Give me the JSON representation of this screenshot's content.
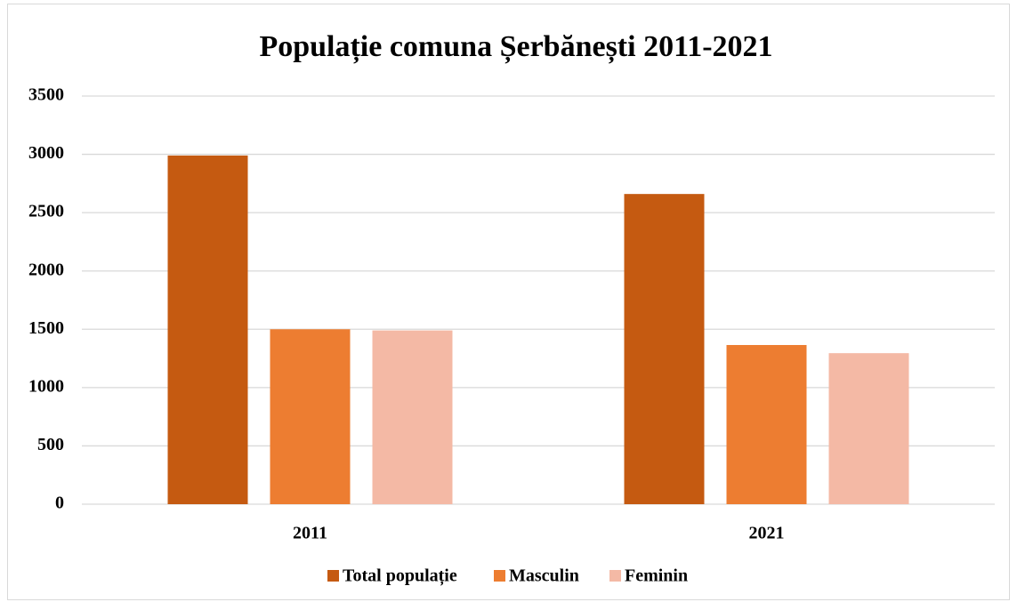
{
  "chart_data": {
    "type": "bar",
    "title": "Populație comuna Șerbănești 2011-2021",
    "categories": [
      "2011",
      "2021"
    ],
    "series": [
      {
        "name": "Total populație",
        "color": "#c55a11",
        "values": [
          2990,
          2660
        ]
      },
      {
        "name": "Masculin",
        "color": "#ed7d31",
        "values": [
          1500,
          1365
        ]
      },
      {
        "name": "Feminin",
        "color": "#f4b9a5",
        "values": [
          1490,
          1295
        ]
      }
    ],
    "ylim": [
      0,
      3500
    ],
    "yticks": [
      0,
      500,
      1000,
      1500,
      2000,
      2500,
      3000,
      3500
    ],
    "grid": true,
    "legend": "bottom"
  }
}
